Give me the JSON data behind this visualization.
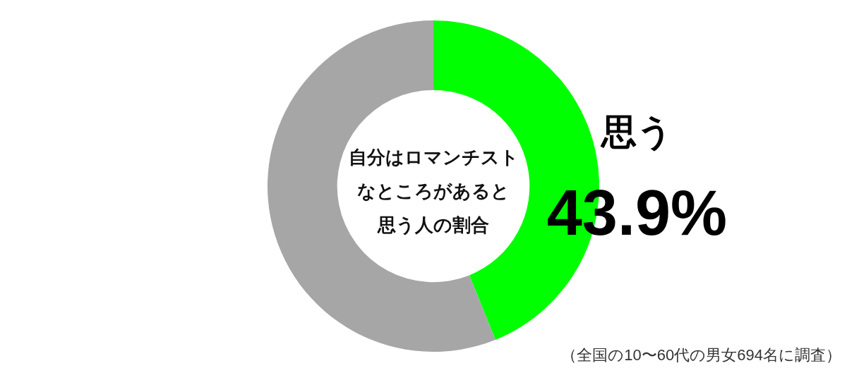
{
  "chart_data": {
    "type": "donut",
    "title": "自分はロマンチストなところがあると思う人の割合",
    "categories": [
      "思う",
      null
    ],
    "values": [
      43.9,
      56.1
    ],
    "colors": [
      "#00ff00",
      "#a6a6a6"
    ],
    "value_labels": [
      "43.9%",
      null
    ],
    "annotations": [
      "（全国の10〜60代の男女694名に調査）"
    ]
  }
}
